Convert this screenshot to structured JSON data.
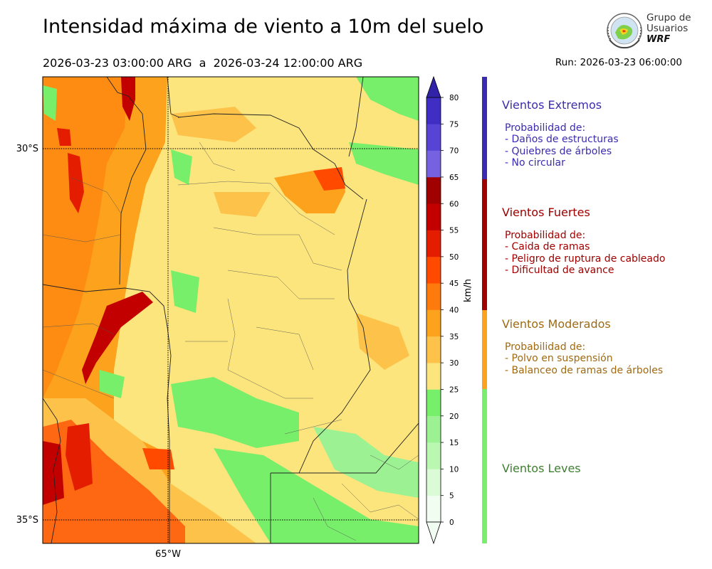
{
  "header": {
    "title": "Intensidad máxima de viento a 10m del suelo",
    "period": "2026-03-23 03:00:00 ARG  a  2026-03-24 12:00:00 ARG",
    "run": "Run: 2026-03-23 06:00:00"
  },
  "logo": {
    "line1": "Grupo de",
    "line2": "Usuarios",
    "line3": "WRF"
  },
  "map": {
    "lat_labels": [
      "30°S",
      "35°S"
    ],
    "lon_labels": [
      "65°W"
    ]
  },
  "colorbar": {
    "unit": "km/h",
    "ticks": [
      "0",
      "5",
      "10",
      "15",
      "20",
      "25",
      "30",
      "35",
      "40",
      "45",
      "50",
      "55",
      "60",
      "65",
      "70",
      "75",
      "80"
    ],
    "colors": [
      "#f2fdf2",
      "#dafbd6",
      "#baf8b2",
      "#9cf293",
      "#78ef6a",
      "#fde57d",
      "#fdc24a",
      "#fda21c",
      "#ff7a0c",
      "#ff4a00",
      "#e41d00",
      "#c20000",
      "#a00000",
      "#7662e0",
      "#5744d5",
      "#3f2dc4"
    ],
    "extend_color": "#3222a8"
  },
  "legend": {
    "categories": [
      {
        "title": "Vientos Extremos",
        "lines": [
          "Probabilidad de:",
          "- Daños de estructuras",
          "- Quiebres de árboles",
          "- No circular"
        ],
        "color": "#3b2bb0",
        "range_kmh": [
          65,
          80
        ]
      },
      {
        "title": "Vientos Fuertes",
        "lines": [
          "Probabilidad de:",
          "- Caida de ramas",
          "- Peligro de ruptura de cableado",
          "- Dificultad de avance"
        ],
        "color": "#a00000",
        "range_kmh": [
          40,
          65
        ]
      },
      {
        "title": "Vientos Moderados",
        "lines": [
          "Probabilidad de:",
          "- Polvo en suspensión",
          "- Balanceo de ramas de árboles"
        ],
        "color": "#a06a10",
        "bar_color": "#fda21c",
        "range_kmh": [
          25,
          40
        ]
      },
      {
        "title": "Vientos Leves",
        "lines": [],
        "color": "#3e7f30",
        "bar_color": "#78ef6a",
        "range_kmh": [
          0,
          25
        ]
      }
    ]
  }
}
